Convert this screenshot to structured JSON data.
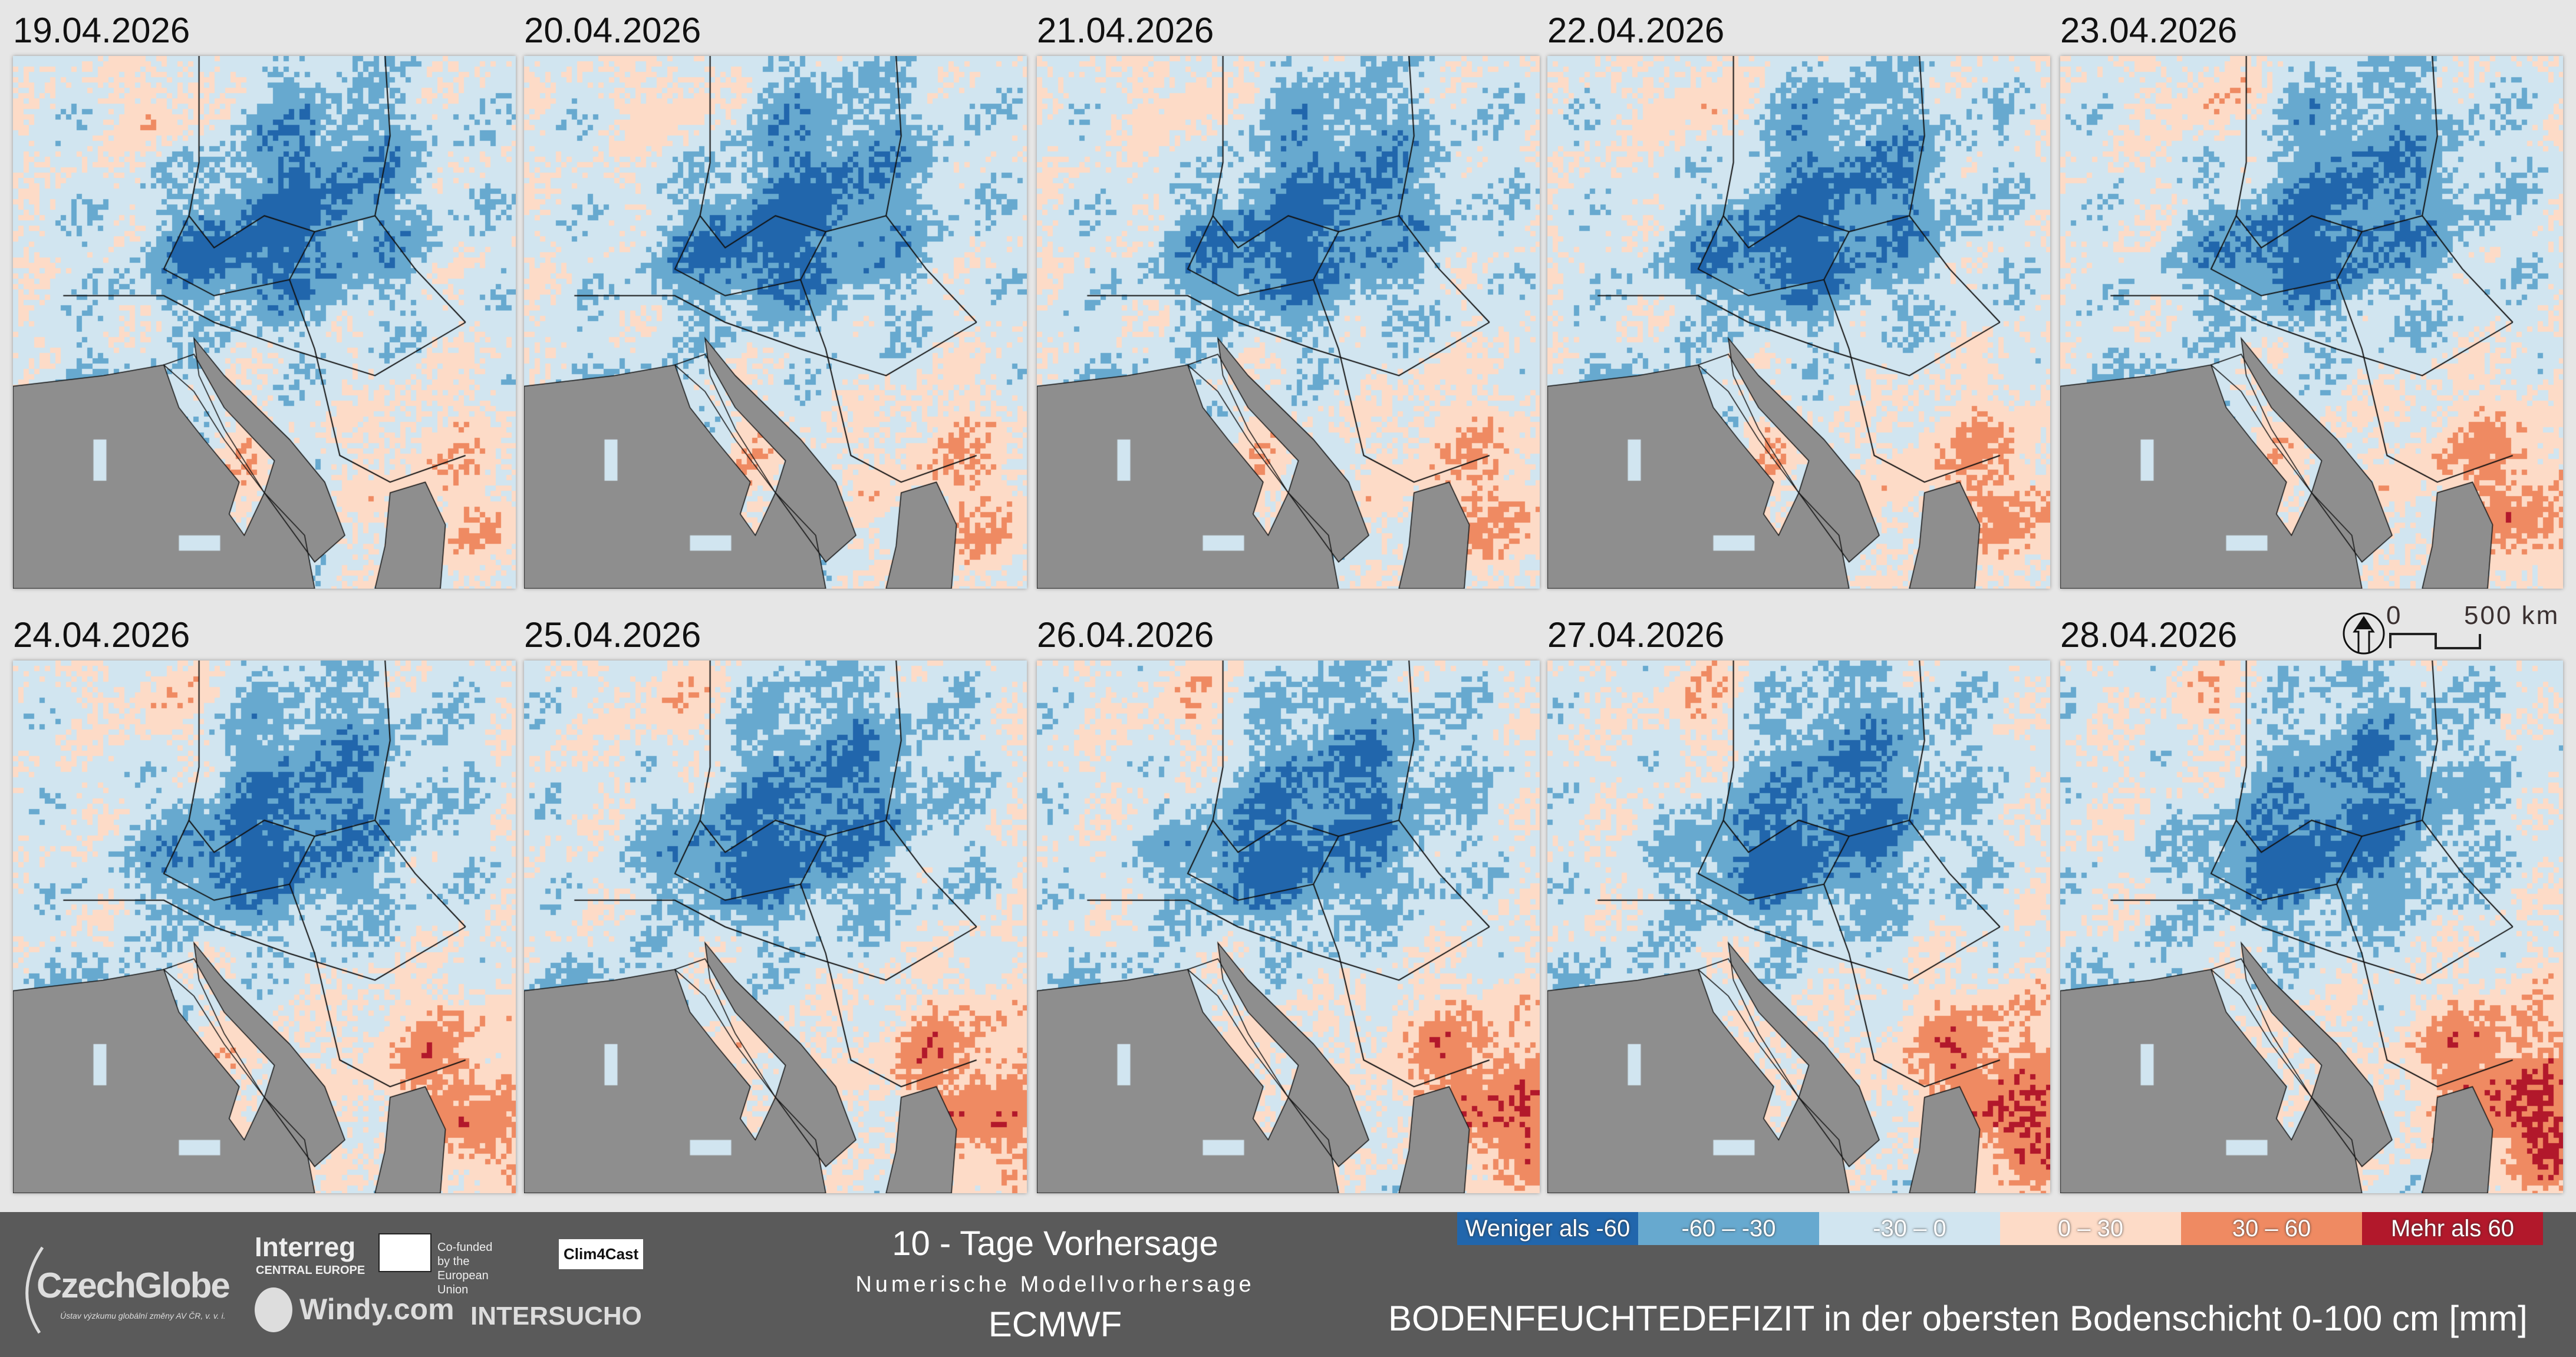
{
  "dates": [
    "19.04.2026",
    "20.04.2026",
    "21.04.2026",
    "22.04.2026",
    "23.04.2026",
    "24.04.2026",
    "25.04.2026",
    "26.04.2026",
    "27.04.2026",
    "28.04.2026"
  ],
  "scale": {
    "zero": "0",
    "max": "500 km",
    "north_icon": "north-arrow-icon"
  },
  "footer": {
    "title": "10 - Tage Vorhersage",
    "subtitle": "Numerische Modellvorhersage",
    "model": "ECMWF",
    "variable": "BODENFEUCHTEDEFIZIT in der obersten Bodenschicht 0-100 cm [mm]",
    "logos": {
      "czechglobe": "CzechGlobe",
      "czechglobe_sub": "Ústav výzkumu globální změny AV ČR, v. v. i.",
      "interreg": "Interreg",
      "interreg_sub": "CENTRAL EUROPE",
      "eu": "Co-funded by the European Union",
      "clim4cast": "Clim4Cast",
      "windy": "Windy.com",
      "intersucho": "INTERSUCHO"
    }
  },
  "legend": [
    {
      "label": "Weniger als -60",
      "color": "#2166ac"
    },
    {
      "label": "-60 – -30",
      "color": "#67a9cf"
    },
    {
      "label": "-30 – 0",
      "color": "#d1e5f0"
    },
    {
      "label": "0 – 30",
      "color": "#fddbc7"
    },
    {
      "label": "30 – 60",
      "color": "#ef8a62"
    },
    {
      "label": "Mehr als 60",
      "color": "#b2182b"
    }
  ],
  "colors": {
    "sea": "#8e8e8e",
    "borders": "#111111"
  }
}
